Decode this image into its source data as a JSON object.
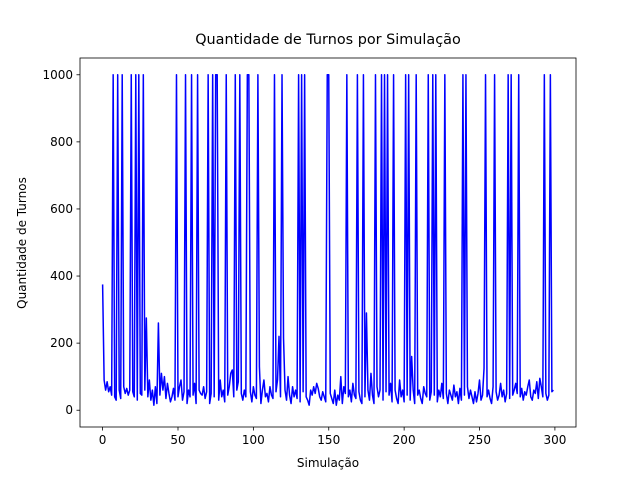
{
  "chart_data": {
    "type": "line",
    "title": "Quantidade de Turnos por Simulação",
    "xlabel": "Simulação",
    "ylabel": "Quantidade de Turnos",
    "color": "#0000ff",
    "values": [
      375,
      90,
      60,
      85,
      55,
      70,
      45,
      1000,
      40,
      30,
      1000,
      60,
      35,
      1000,
      70,
      50,
      65,
      45,
      60,
      1000,
      55,
      40,
      1000,
      30,
      1000,
      50,
      45,
      1000,
      60,
      275,
      40,
      90,
      30,
      60,
      15,
      70,
      20,
      260,
      45,
      110,
      60,
      100,
      35,
      80,
      50,
      25,
      40,
      65,
      30,
      1000,
      40,
      70,
      90,
      30,
      55,
      1000,
      20,
      60,
      40,
      1000,
      45,
      80,
      20,
      1000,
      60,
      50,
      45,
      70,
      35,
      55,
      1000,
      20,
      50,
      1000,
      40,
      1000,
      1000,
      30,
      90,
      40,
      60,
      25,
      1000,
      45,
      70,
      110,
      120,
      40,
      1000,
      60,
      85,
      1000,
      50,
      30,
      60,
      40,
      1000,
      1000,
      55,
      25,
      70,
      45,
      35,
      1000,
      130,
      20,
      60,
      90,
      40,
      50,
      25,
      70,
      45,
      35,
      1000,
      55,
      90,
      220,
      40,
      1000,
      215,
      60,
      30,
      100,
      45,
      20,
      70,
      40,
      60,
      35,
      1000,
      25,
      1000,
      55,
      1000,
      40,
      30,
      15,
      60,
      45,
      70,
      50,
      80,
      65,
      40,
      30,
      55,
      40,
      25,
      1000,
      1000,
      50,
      35,
      20,
      60,
      15,
      45,
      30,
      100,
      20,
      70,
      50,
      1000,
      40,
      60,
      25,
      80,
      45,
      35,
      1000,
      55,
      30,
      20,
      1000,
      40,
      290,
      60,
      30,
      110,
      45,
      20,
      1000,
      70,
      40,
      60,
      1000,
      30,
      1000,
      55,
      1000,
      45,
      80,
      25,
      1000,
      60,
      35,
      20,
      90,
      40,
      60,
      25,
      1000,
      45,
      1000,
      30,
      160,
      60,
      20,
      1000,
      45,
      60,
      35,
      20,
      70,
      50,
      40,
      1000,
      30,
      55,
      1000,
      45,
      1000,
      25,
      60,
      40,
      80,
      35,
      1000,
      50,
      20,
      60,
      45,
      30,
      75,
      40,
      55,
      20,
      65,
      30,
      1000,
      45,
      1000,
      70,
      35,
      60,
      40,
      20,
      55,
      25,
      50,
      90,
      30,
      45,
      125,
      1000,
      40,
      60,
      35,
      20,
      70,
      1000,
      55,
      30,
      45,
      80,
      40,
      60,
      25,
      50,
      1000,
      35,
      1000,
      45,
      60,
      80,
      50,
      1000,
      40,
      65,
      30,
      55,
      45,
      70,
      90,
      40,
      30,
      60,
      50,
      85,
      35,
      95,
      70,
      40,
      1000,
      50,
      30,
      45,
      1000,
      55,
      60
    ],
    "xlim": [
      -15,
      314
    ],
    "ylim": [
      -50,
      1050
    ],
    "xticks": [
      0,
      50,
      100,
      150,
      200,
      250,
      300
    ],
    "yticks": [
      0,
      200,
      400,
      600,
      800,
      1000
    ]
  }
}
